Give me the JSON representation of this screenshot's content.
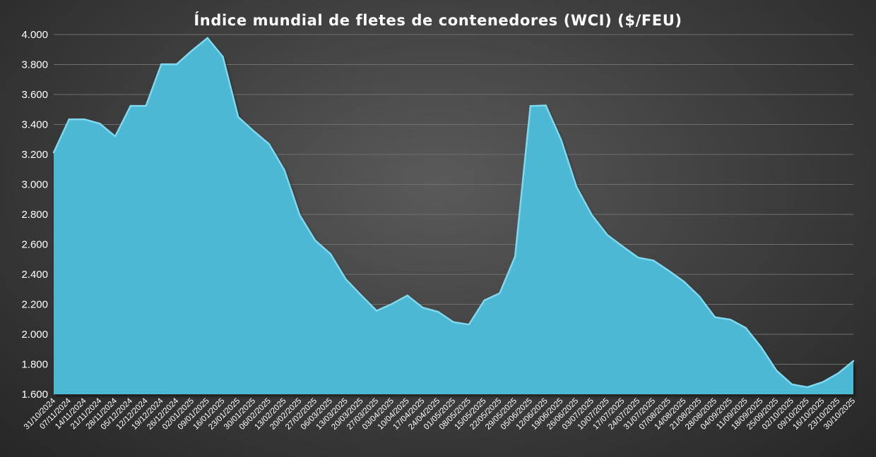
{
  "chart_data": {
    "type": "area",
    "title": "Índice mundial de fletes de contenedores (WCI) ($/FEU)",
    "xlabel": "",
    "ylabel": "",
    "ylim": [
      1600,
      4000
    ],
    "y_ticks": [
      "1.600",
      "1.800",
      "2.000",
      "2.200",
      "2.400",
      "2.600",
      "2.800",
      "3.000",
      "3.200",
      "3.400",
      "3.600",
      "3.800",
      "4.000"
    ],
    "y_tick_values": [
      1600,
      1800,
      2000,
      2200,
      2400,
      2600,
      2800,
      3000,
      3200,
      3400,
      3600,
      3800,
      4000
    ],
    "grid": true,
    "legend": "none",
    "fill_color": "#4db8d4",
    "edge_color": "#7fd8ee",
    "categories": [
      "31/10/2024",
      "07/11/2024",
      "14/11/2024",
      "21/11/2024",
      "28/11/2024",
      "05/12/2024",
      "12/12/2024",
      "19/12/2024",
      "26/12/2024",
      "02/01/2025",
      "09/01/2025",
      "16/01/2025",
      "23/01/2025",
      "30/01/2025",
      "06/02/2025",
      "13/02/2025",
      "20/02/2025",
      "27/02/2025",
      "06/03/2025",
      "13/03/2025",
      "20/03/2025",
      "27/03/2025",
      "03/04/2025",
      "10/04/2025",
      "17/04/2025",
      "24/04/2025",
      "01/05/2025",
      "08/05/2025",
      "15/05/2025",
      "22/05/2025",
      "29/05/2025",
      "05/06/2025",
      "12/06/2025",
      "19/06/2025",
      "26/06/2025",
      "03/07/2025",
      "10/07/2025",
      "17/07/2025",
      "24/07/2025",
      "31/07/2025",
      "07/08/2025",
      "14/08/2025",
      "21/08/2025",
      "28/08/2025",
      "04/09/2025",
      "11/09/2025",
      "18/09/2025",
      "25/09/2025",
      "02/10/2025",
      "09/10/2025",
      "16/10/2025",
      "23/10/2025",
      "30/10/2025"
    ],
    "values": [
      3213,
      3434,
      3434,
      3406,
      3321,
      3524,
      3524,
      3802,
      3802,
      3894,
      3977,
      3852,
      3450,
      3356,
      3270,
      3096,
      2795,
      2627,
      2536,
      2367,
      2260,
      2157,
      2203,
      2259,
      2178,
      2150,
      2081,
      2065,
      2226,
      2274,
      2518,
      3523,
      3527,
      3297,
      2983,
      2795,
      2663,
      2586,
      2512,
      2492,
      2424,
      2350,
      2251,
      2114,
      2098,
      2043,
      1915,
      1758,
      1666,
      1647,
      1681,
      1739,
      1822
    ]
  }
}
